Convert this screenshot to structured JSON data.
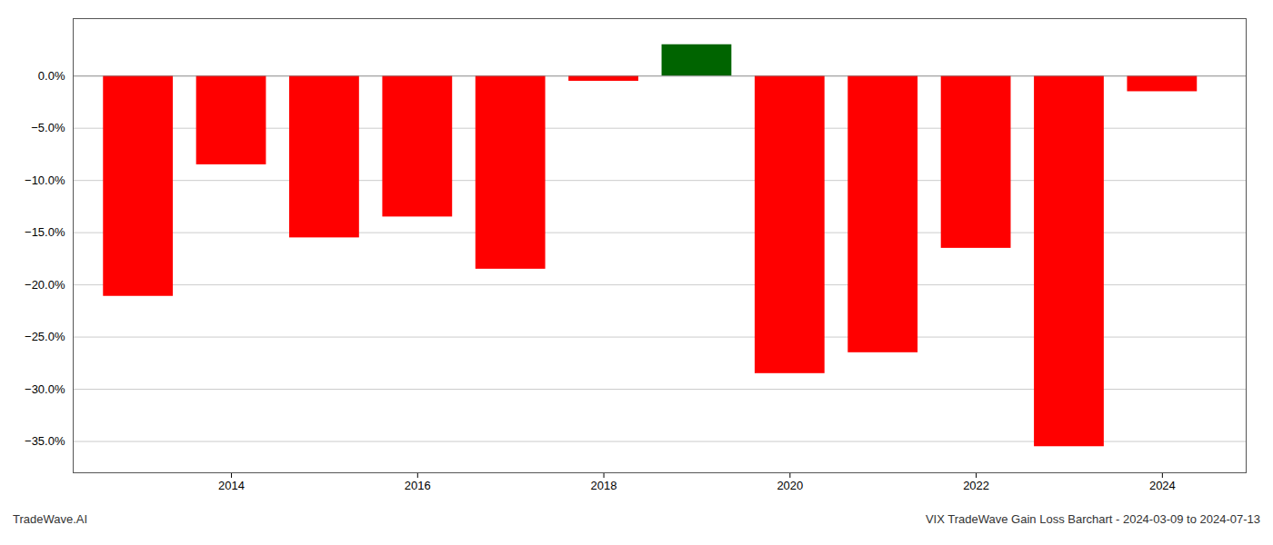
{
  "chart_data": {
    "type": "bar",
    "x": [
      2013,
      2014,
      2015,
      2016,
      2017,
      2018,
      2019,
      2020,
      2021,
      2022,
      2023,
      2024
    ],
    "values": [
      -0.211,
      -0.085,
      -0.155,
      -0.135,
      -0.185,
      -0.005,
      0.03,
      -0.285,
      -0.265,
      -0.165,
      -0.355,
      -0.015
    ],
    "colors": [
      "#ff0000",
      "#ff0000",
      "#ff0000",
      "#ff0000",
      "#ff0000",
      "#ff0000",
      "#006400",
      "#ff0000",
      "#ff0000",
      "#ff0000",
      "#ff0000",
      "#ff0000"
    ],
    "xlim": [
      2012.3,
      2024.9
    ],
    "xticks": [
      2014,
      2016,
      2018,
      2020,
      2022,
      2024
    ],
    "ylim": [
      -0.38,
      0.055
    ],
    "yticks": [
      {
        "value": 0,
        "label": "0.0%"
      },
      {
        "value": -0.05,
        "label": "−5.0%"
      },
      {
        "value": -0.1,
        "label": "−10.0%"
      },
      {
        "value": -0.15,
        "label": "−15.0%"
      },
      {
        "value": -0.2,
        "label": "−20.0%"
      },
      {
        "value": -0.25,
        "label": "−25.0%"
      },
      {
        "value": -0.3,
        "label": "−30.0%"
      },
      {
        "value": -0.35,
        "label": "−35.0%"
      }
    ],
    "grid": true,
    "annotations": [
      "TradeWave.AI",
      "VIX TradeWave Gain Loss Barchart - 2024-03-09 to 2024-07-13"
    ]
  }
}
